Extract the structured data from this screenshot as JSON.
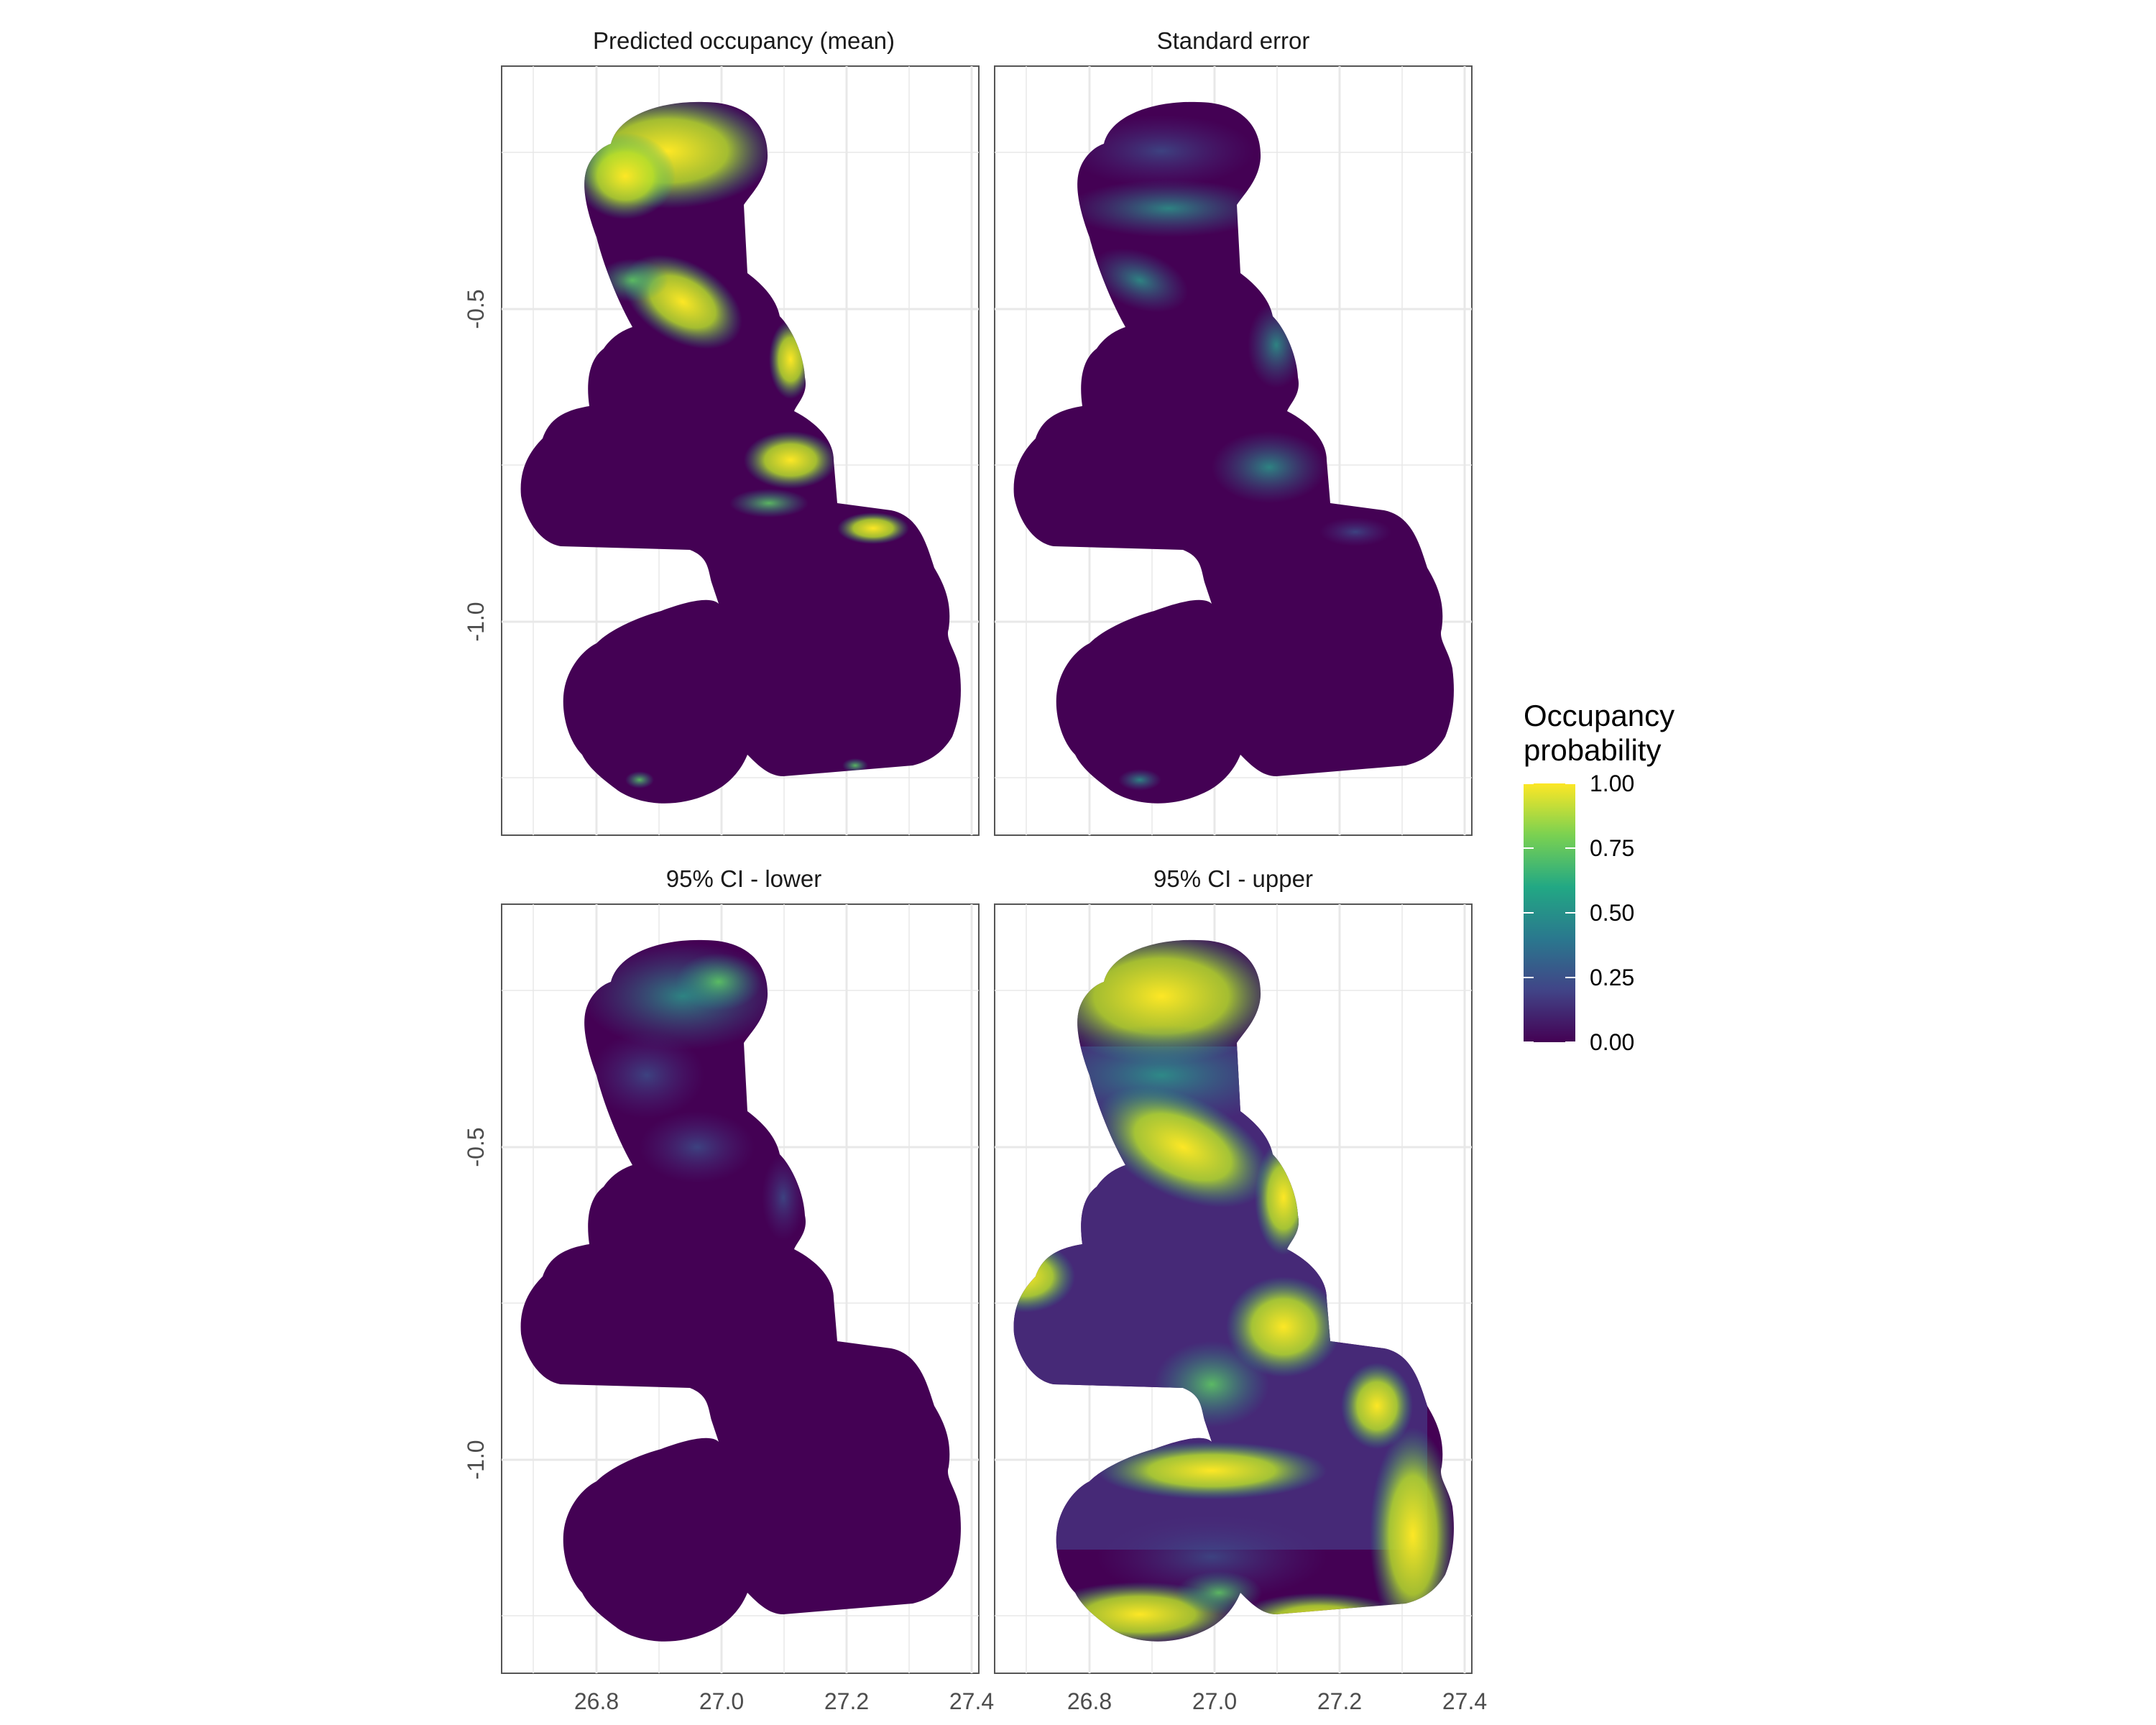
{
  "chart_data": [
    {
      "type": "heatmap",
      "title": "Predicted occupancy (mean)",
      "xlim": [
        26.63,
        27.42
      ],
      "ylim": [
        -1.335,
        -0.185
      ],
      "x_ticks": [
        "26.8",
        "27.0",
        "27.2",
        "27.4"
      ],
      "y_ticks": [
        "-0.5",
        "-1.0"
      ],
      "hotspots": [
        {
          "lon": 26.95,
          "lat": -0.27,
          "value": 1.0
        },
        {
          "lon": 26.98,
          "lat": -0.49,
          "value": 0.9
        },
        {
          "lon": 27.1,
          "lat": -0.57,
          "value": 0.85
        },
        {
          "lon": 27.08,
          "lat": -0.76,
          "value": 0.8
        },
        {
          "lon": 27.18,
          "lat": -0.87,
          "value": 0.7
        },
        {
          "lon": 26.95,
          "lat": -1.22,
          "value": 0.0
        }
      ]
    },
    {
      "type": "heatmap",
      "title": "Standard error",
      "xlim": [
        26.63,
        27.42
      ],
      "ylim": [
        -1.335,
        -0.185
      ],
      "x_ticks": [
        "26.8",
        "27.0",
        "27.2",
        "27.4"
      ],
      "y_ticks": [
        "-0.5",
        "-1.0"
      ],
      "hotspots": [
        {
          "lon": 26.95,
          "lat": -0.27,
          "value": 0.1
        },
        {
          "lon": 26.97,
          "lat": -0.45,
          "value": 0.35
        },
        {
          "lon": 27.1,
          "lat": -0.57,
          "value": 0.3
        },
        {
          "lon": 27.08,
          "lat": -0.77,
          "value": 0.3
        },
        {
          "lon": 26.95,
          "lat": -1.22,
          "value": 0.05
        }
      ]
    },
    {
      "type": "heatmap",
      "title": "95% CI - lower",
      "xlim": [
        26.63,
        27.42
      ],
      "ylim": [
        -1.335,
        -0.185
      ],
      "x_ticks": [
        "26.8",
        "27.0",
        "27.2",
        "27.4"
      ],
      "y_ticks": [
        "-0.5",
        "-1.0"
      ],
      "hotspots": [
        {
          "lon": 26.98,
          "lat": -0.26,
          "value": 0.45
        },
        {
          "lon": 26.94,
          "lat": -0.35,
          "value": 0.2
        },
        {
          "lon": 27.1,
          "lat": -0.57,
          "value": 0.2
        },
        {
          "lon": 26.95,
          "lat": -1.22,
          "value": 0.0
        }
      ]
    },
    {
      "type": "heatmap",
      "title": "95% CI - upper",
      "xlim": [
        26.63,
        27.42
      ],
      "ylim": [
        -1.335,
        -0.185
      ],
      "x_ticks": [
        "26.8",
        "27.0",
        "27.2",
        "27.4"
      ],
      "y_ticks": [
        "-0.5",
        "-1.0"
      ],
      "hotspots": [
        {
          "lon": 26.95,
          "lat": -0.27,
          "value": 1.0
        },
        {
          "lon": 26.98,
          "lat": -0.48,
          "value": 1.0
        },
        {
          "lon": 27.1,
          "lat": -0.75,
          "value": 1.0
        },
        {
          "lon": 27.25,
          "lat": -1.05,
          "value": 0.95
        },
        {
          "lon": 26.95,
          "lat": -1.25,
          "value": 0.9
        },
        {
          "lon": 26.73,
          "lat": -0.72,
          "value": 0.9
        }
      ]
    }
  ],
  "legend": {
    "title_line1": "Occupancy",
    "title_line2": "probability",
    "ticks": [
      "1.00",
      "0.75",
      "0.50",
      "0.25",
      "0.00"
    ],
    "colors": [
      "#fde725",
      "#7ad151",
      "#22a884",
      "#2a788e",
      "#414487",
      "#440154"
    ]
  }
}
